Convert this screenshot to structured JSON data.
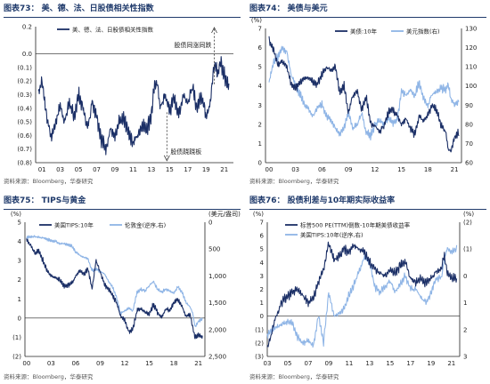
{
  "colors": {
    "dark": "#1b2f66",
    "light": "#8fb5e6",
    "arrow": "#333333",
    "title": "#1f3a6b"
  },
  "chart_data": [
    {
      "id": "c73",
      "type": "line",
      "title": "图表73：  美、德、法、日股债相关性指数",
      "source": "资料来源：Bloomberg，华泰研究",
      "x": [
        2000.6,
        2001.0,
        2001.5,
        2002.0,
        2002.5,
        2003.0,
        2003.5,
        2004.0,
        2004.5,
        2005.0,
        2005.5,
        2006.0,
        2006.5,
        2007.0,
        2007.5,
        2008.0,
        2008.5,
        2009.0,
        2009.5,
        2010.0,
        2010.5,
        2011.0,
        2011.5,
        2012.0,
        2012.5,
        2013.0,
        2013.3,
        2013.6,
        2014.0,
        2014.5,
        2015.0,
        2015.5,
        2016.0,
        2016.5,
        2017.0,
        2017.5,
        2018.0,
        2018.5,
        2019.0,
        2019.5,
        2019.8,
        2020.0,
        2020.3,
        2020.6,
        2021.0,
        2021.5
      ],
      "series": [
        {
          "name": "美、德、法、日股债相关性指数",
          "values": [
            -0.28,
            -0.2,
            -0.45,
            -0.62,
            -0.5,
            -0.38,
            -0.5,
            -0.35,
            -0.48,
            -0.3,
            -0.4,
            -0.55,
            -0.35,
            -0.45,
            -0.62,
            -0.7,
            -0.55,
            -0.62,
            -0.5,
            -0.48,
            -0.58,
            -0.65,
            -0.6,
            -0.52,
            -0.55,
            -0.45,
            -0.25,
            -0.2,
            -0.4,
            -0.3,
            -0.42,
            -0.32,
            -0.45,
            -0.3,
            -0.35,
            -0.25,
            -0.4,
            -0.3,
            -0.45,
            -0.35,
            -0.12,
            -0.08,
            -0.15,
            -0.05,
            -0.15,
            -0.25
          ]
        }
      ],
      "xlim": [
        2000.3,
        2022
      ],
      "ylim": [
        -0.8,
        0.2
      ],
      "yticks": [
        "0.2",
        "0.0",
        "(0.1)",
        "(0.2)",
        "(0.3)",
        "(0.4)",
        "(0.5)",
        "(0.6)",
        "(0.7)",
        "(0.8)"
      ],
      "ytickvals": [
        0.2,
        0,
        -0.1,
        -0.2,
        -0.3,
        -0.4,
        -0.5,
        -0.6,
        -0.7,
        -0.8
      ],
      "xticks": [
        "01",
        "03",
        "05",
        "07",
        "09",
        "11",
        "13",
        "15",
        "17",
        "19",
        "21"
      ],
      "annotations": [
        "股债同涨同跌",
        "股债跷跷板"
      ]
    },
    {
      "id": "c74",
      "type": "line",
      "title": "图表74：  美债与美元",
      "source": "资料来源：Bloomberg，华泰研究",
      "x": [
        2000.0,
        2000.5,
        2001.0,
        2001.5,
        2002.0,
        2002.5,
        2003.0,
        2003.5,
        2004.0,
        2004.5,
        2005.0,
        2005.5,
        2006.0,
        2006.5,
        2007.0,
        2007.5,
        2008.0,
        2008.5,
        2009.0,
        2009.5,
        2010.0,
        2010.5,
        2011.0,
        2011.5,
        2012.0,
        2012.5,
        2013.0,
        2013.5,
        2014.0,
        2014.5,
        2015.0,
        2015.5,
        2016.0,
        2016.5,
        2017.0,
        2017.5,
        2018.0,
        2018.5,
        2019.0,
        2019.5,
        2020.0,
        2020.3,
        2020.6,
        2021.0,
        2021.5
      ],
      "series": [
        {
          "name": "美债:10年",
          "values": [
            6.4,
            5.9,
            5.1,
            5.3,
            5.0,
            4.1,
            3.9,
            4.2,
            4.4,
            4.4,
            4.2,
            4.1,
            4.6,
            5.0,
            4.8,
            5.0,
            3.7,
            4.0,
            2.6,
            3.5,
            3.7,
            2.8,
            3.4,
            2.1,
            1.9,
            1.6,
            1.9,
            2.6,
            2.8,
            2.5,
            2.0,
            2.3,
            1.8,
            1.5,
            2.4,
            2.2,
            2.5,
            3.0,
            2.7,
            1.9,
            1.6,
            0.7,
            0.6,
            1.3,
            1.6
          ]
        },
        {
          "name": "美元指数(右)",
          "values": [
            102,
            112,
            115,
            120,
            118,
            106,
            100,
            96,
            90,
            88,
            84,
            89,
            90,
            85,
            83,
            78,
            75,
            78,
            86,
            78,
            80,
            86,
            76,
            74,
            80,
            82,
            80,
            83,
            81,
            82,
            97,
            95,
            98,
            95,
            102,
            93,
            90,
            96,
            97,
            99,
            98,
            101,
            93,
            90,
            92
          ]
        }
      ],
      "xlim": [
        1999.6,
        2021.8
      ],
      "ylim": [
        0,
        7
      ],
      "y2lim": [
        60,
        130
      ],
      "yticks": [
        "7",
        "6",
        "5",
        "4",
        "3",
        "2",
        "1",
        "0"
      ],
      "ytickvals": [
        7,
        6,
        5,
        4,
        3,
        2,
        1,
        0
      ],
      "y2ticks": [
        "130",
        "120",
        "110",
        "100",
        "90",
        "80",
        "70",
        "60"
      ],
      "y2tickvals": [
        130,
        120,
        110,
        100,
        90,
        80,
        70,
        60
      ],
      "xticks": [
        "00",
        "03",
        "06",
        "09",
        "12",
        "15",
        "18",
        "21"
      ],
      "ylabel": "(%)"
    },
    {
      "id": "c75",
      "type": "line",
      "title": "图表75：  TIPS与黄金",
      "source": "资料来源：Bloomberg，华泰研究",
      "x": [
        2000.0,
        2000.5,
        2001.0,
        2001.5,
        2002.0,
        2002.5,
        2003.0,
        2003.5,
        2004.0,
        2004.5,
        2005.0,
        2005.5,
        2006.0,
        2006.5,
        2007.0,
        2007.5,
        2008.0,
        2008.5,
        2009.0,
        2009.5,
        2010.0,
        2010.5,
        2011.0,
        2011.5,
        2012.0,
        2012.5,
        2013.0,
        2013.5,
        2014.0,
        2014.5,
        2015.0,
        2015.5,
        2016.0,
        2016.5,
        2017.0,
        2017.5,
        2018.0,
        2018.5,
        2019.0,
        2019.5,
        2020.0,
        2020.3,
        2020.6,
        2021.0,
        2021.5
      ],
      "series": [
        {
          "name": "美国TIPS:10年",
          "values": [
            4.1,
            3.8,
            3.4,
            3.5,
            3.0,
            2.5,
            2.2,
            2.1,
            2.0,
            1.7,
            1.7,
            1.8,
            2.2,
            2.5,
            2.3,
            2.6,
            1.5,
            3.0,
            2.4,
            1.8,
            1.5,
            1.2,
            0.8,
            0.1,
            -0.1,
            -0.7,
            -0.6,
            0.4,
            0.5,
            0.3,
            0.2,
            0.7,
            0.3,
            0.0,
            0.5,
            0.4,
            0.8,
            1.0,
            0.6,
            0.1,
            0.2,
            -0.5,
            -1.0,
            -0.9,
            -1.0
          ]
        },
        {
          "name": "伦敦金(逆序,右)",
          "values": [
            280,
            275,
            265,
            275,
            290,
            315,
            350,
            350,
            400,
            400,
            420,
            440,
            550,
            620,
            650,
            680,
            900,
            870,
            920,
            950,
            1100,
            1200,
            1400,
            1700,
            1650,
            1600,
            1650,
            1300,
            1250,
            1280,
            1180,
            1100,
            1250,
            1300,
            1250,
            1280,
            1320,
            1200,
            1300,
            1500,
            1580,
            1700,
            1950,
            1850,
            1800
          ]
        }
      ],
      "xlim": [
        1999.8,
        2021.8
      ],
      "ylim": [
        -2,
        5
      ],
      "y2lim": [
        2500,
        0
      ],
      "yticks": [
        "5",
        "4",
        "3",
        "2",
        "1",
        "0",
        "(1)",
        "(2)"
      ],
      "ytickvals": [
        5,
        4,
        3,
        2,
        1,
        0,
        -1,
        -2
      ],
      "y2ticks": [
        "0",
        "500",
        "1,000",
        "1,500",
        "2,000",
        "2,500"
      ],
      "y2tickvals": [
        0,
        500,
        1000,
        1500,
        2000,
        2500
      ],
      "xticks": [
        "00",
        "03",
        "06",
        "09",
        "12",
        "15",
        "18",
        "21"
      ],
      "ylabel": "(%)",
      "y2label": "(美元/盎司)"
    },
    {
      "id": "c76",
      "type": "line",
      "title": "图表76：  股债利差与10年期实际收益率",
      "source": "资料来源：Bloomberg，华泰研究",
      "x": [
        2003.0,
        2003.5,
        2004.0,
        2004.5,
        2005.0,
        2005.5,
        2006.0,
        2006.5,
        2007.0,
        2007.5,
        2008.0,
        2008.5,
        2009.0,
        2009.5,
        2010.0,
        2010.5,
        2011.0,
        2011.5,
        2012.0,
        2012.5,
        2013.0,
        2013.5,
        2014.0,
        2014.5,
        2015.0,
        2015.5,
        2016.0,
        2016.5,
        2017.0,
        2017.5,
        2018.0,
        2018.5,
        2019.0,
        2019.5,
        2020.0,
        2020.3,
        2020.6,
        2021.0,
        2021.5
      ],
      "series": [
        {
          "name": "标普500 PE(TTM)倒数-10年期美债收益率",
          "values": [
            -2.5,
            -1.0,
            0.3,
            1.2,
            1.5,
            1.8,
            2.0,
            1.5,
            1.0,
            1.4,
            2.5,
            3.5,
            5.5,
            4.2,
            4.5,
            5.0,
            4.8,
            5.3,
            5.0,
            4.8,
            4.0,
            3.5,
            3.2,
            3.0,
            3.5,
            3.2,
            3.8,
            4.0,
            2.8,
            2.5,
            2.8,
            2.5,
            2.8,
            3.3,
            3.6,
            4.5,
            3.2,
            2.8,
            2.9
          ]
        },
        {
          "name": "美国TIPS:10年(逆序,右)",
          "values": [
            2.2,
            2.0,
            1.9,
            1.8,
            1.7,
            1.8,
            2.3,
            2.5,
            2.4,
            2.6,
            1.5,
            2.5,
            0.6,
            1.5,
            1.4,
            1.2,
            0.7,
            0.3,
            -0.2,
            -0.7,
            -0.5,
            0.4,
            0.6,
            0.4,
            0.2,
            0.6,
            0.3,
            0.0,
            0.5,
            0.5,
            0.8,
            1.0,
            0.6,
            0.1,
            0.1,
            -0.6,
            -1.0,
            -0.9,
            -1.0
          ]
        }
      ],
      "xlim": [
        2003,
        2021.8
      ],
      "ylim": [
        -3,
        7
      ],
      "y2lim": [
        3,
        -2
      ],
      "yticks": [
        "7",
        "6",
        "5",
        "4",
        "3",
        "2",
        "1",
        "0",
        "(1)",
        "(2)",
        "(3)"
      ],
      "ytickvals": [
        7,
        6,
        5,
        4,
        3,
        2,
        1,
        0,
        -1,
        -2,
        -3
      ],
      "y2ticks": [
        "(2)",
        "(1)",
        "0",
        "1",
        "2",
        "3"
      ],
      "y2tickvals": [
        -2,
        -1,
        0,
        1,
        2,
        3
      ],
      "xticks": [
        "03",
        "05",
        "07",
        "09",
        "11",
        "13",
        "15",
        "17",
        "19",
        "21"
      ],
      "ylabel": "(%)",
      "y2label": "(%)"
    }
  ]
}
